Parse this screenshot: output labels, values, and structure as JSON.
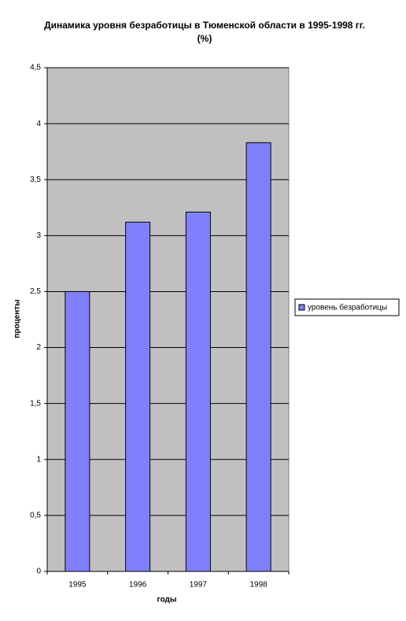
{
  "chart_data": {
    "type": "bar",
    "title": "Динамика уровня безработицы в Тюменской области в 1995-1998 гг. (%)",
    "x_label": "годы",
    "y_label": "проценты",
    "categories": [
      "1995",
      "1996",
      "1997",
      "1998"
    ],
    "series": [
      {
        "name": "уровень безработицы",
        "color": "#8080ff",
        "values": [
          2.5,
          3.12,
          3.21,
          3.83
        ]
      }
    ],
    "ylim": [
      0,
      4.5
    ],
    "yticks": [
      0,
      {
        "value": 0.5,
        "label": "0,5"
      },
      1,
      {
        "value": 1.5,
        "label": "1,5"
      },
      2,
      {
        "value": 2.5,
        "label": "2,5"
      },
      3,
      {
        "value": 3.5,
        "label": "3,5"
      },
      4,
      {
        "value": 4.5,
        "label": "4,5"
      }
    ],
    "grid": true,
    "legend": "right"
  }
}
